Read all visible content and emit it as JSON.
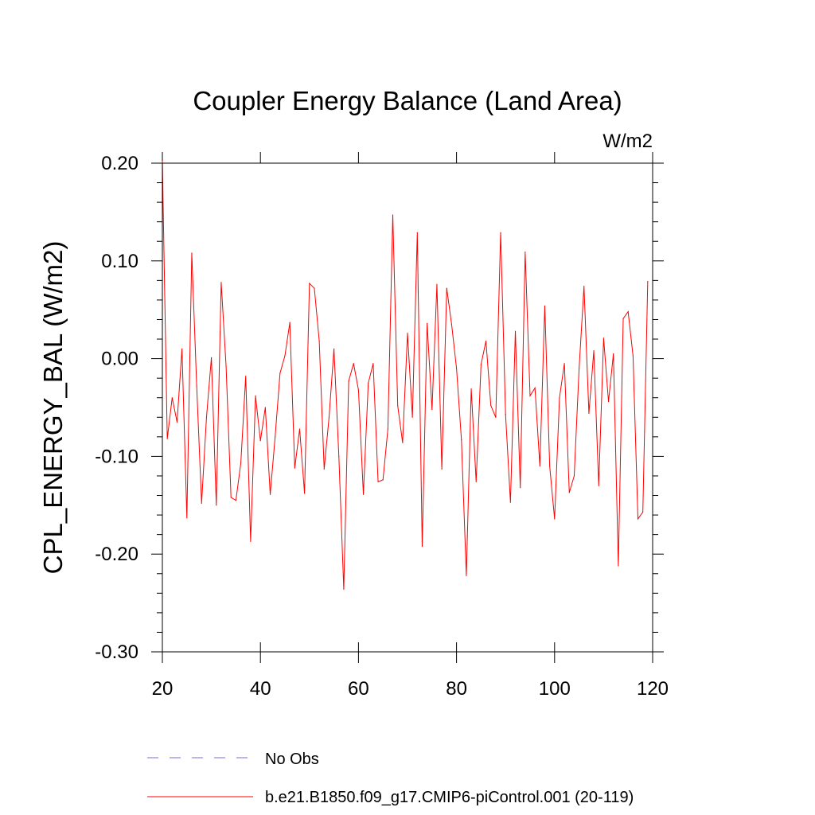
{
  "chart_data": {
    "type": "line",
    "title": "Coupler Energy Balance (Land Area)",
    "units_label": "W/m2",
    "ylabel": "CPL_ENERGY_BAL  (W/m2)",
    "xlabel": "",
    "xlim": [
      20,
      120
    ],
    "ylim": [
      -0.3,
      0.2
    ],
    "x_ticks": [
      20,
      40,
      60,
      80,
      100,
      120
    ],
    "x_tick_labels": [
      "20",
      "40",
      "60",
      "80",
      "100",
      "120"
    ],
    "y_ticks": [
      0.2,
      0.1,
      0.0,
      -0.1,
      -0.2,
      -0.3
    ],
    "y_tick_labels": [
      "0.20",
      "0.10",
      "0.00",
      "-0.10",
      "-0.20",
      "-0.30"
    ],
    "legend": [
      {
        "label": "No Obs",
        "style": "dashed",
        "color": "#7b68d8"
      },
      {
        "label": "b.e21.B1850.f09_g17.CMIP6-piControl.001 (20-119)",
        "style": "solid",
        "color": "#ff0000"
      }
    ],
    "series": [
      {
        "name": "b.e21.B1850.f09_g17.CMIP6-piControl.001 (20-119)",
        "color": "#ff0000",
        "x": [
          20,
          21,
          22,
          23,
          24,
          25,
          26,
          27,
          28,
          29,
          30,
          31,
          32,
          33,
          34,
          35,
          36,
          37,
          38,
          39,
          40,
          41,
          42,
          43,
          44,
          45,
          46,
          47,
          48,
          49,
          50,
          51,
          52,
          53,
          54,
          55,
          56,
          57,
          58,
          59,
          60,
          61,
          62,
          63,
          64,
          65,
          66,
          67,
          68,
          69,
          70,
          71,
          72,
          73,
          74,
          75,
          76,
          77,
          78,
          79,
          80,
          81,
          82,
          83,
          84,
          85,
          86,
          87,
          88,
          89,
          90,
          91,
          92,
          93,
          94,
          95,
          96,
          97,
          98,
          99,
          100,
          101,
          102,
          103,
          104,
          105,
          106,
          107,
          108,
          109,
          110,
          111,
          112,
          113,
          114,
          115,
          116,
          117,
          118,
          119
        ],
        "values": [
          0.202,
          -0.082,
          -0.04,
          -0.065,
          0.01,
          -0.163,
          0.108,
          -0.028,
          -0.148,
          -0.06,
          0.001,
          -0.15,
          0.078,
          -0.008,
          -0.142,
          -0.145,
          -0.107,
          -0.018,
          -0.187,
          -0.038,
          -0.084,
          -0.05,
          -0.139,
          -0.08,
          -0.015,
          0.003,
          0.037,
          -0.112,
          -0.072,
          -0.138,
          0.077,
          0.072,
          0.018,
          -0.113,
          -0.06,
          0.01,
          -0.1,
          -0.236,
          -0.023,
          -0.005,
          -0.032,
          -0.139,
          -0.025,
          -0.005,
          -0.126,
          -0.124,
          -0.072,
          0.147,
          -0.048,
          -0.086,
          0.026,
          -0.06,
          0.129,
          -0.192,
          0.036,
          -0.052,
          0.076,
          -0.113,
          0.072,
          0.035,
          -0.01,
          -0.083,
          -0.222,
          -0.031,
          -0.126,
          -0.006,
          0.018,
          -0.048,
          -0.06,
          0.129,
          -0.057,
          -0.147,
          0.028,
          -0.132,
          0.109,
          -0.038,
          -0.03,
          -0.11,
          0.054,
          -0.11,
          -0.164,
          -0.04,
          -0.005,
          -0.137,
          -0.12,
          -0.01,
          0.074,
          -0.056,
          0.008,
          -0.13,
          0.021,
          -0.044,
          0.005,
          -0.212,
          0.041,
          0.048,
          0.003,
          -0.164,
          -0.157,
          0.079
        ]
      }
    ]
  }
}
